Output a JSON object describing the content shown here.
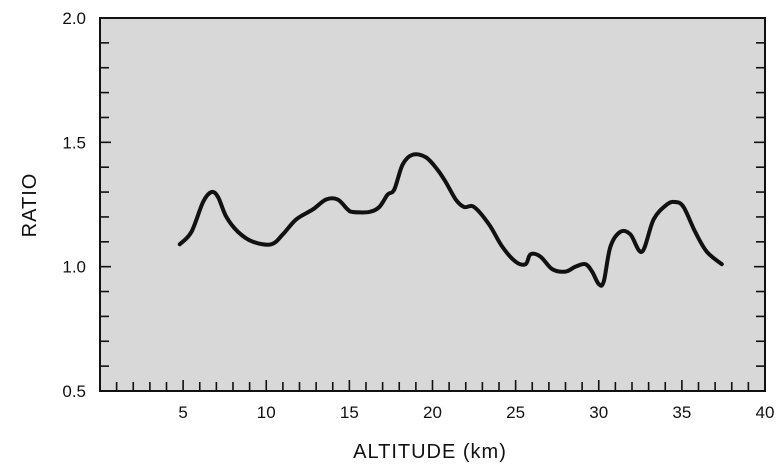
{
  "chart_data": {
    "type": "line",
    "title": "",
    "xlabel": "ALTITUDE (km)",
    "ylabel": "RATIO",
    "xlim": [
      0,
      40
    ],
    "ylim": [
      0.5,
      2.0
    ],
    "x_ticks": [
      "5",
      "10",
      "15",
      "20",
      "25",
      "30",
      "35",
      "40"
    ],
    "y_ticks": [
      "0.5",
      "1.0",
      "1.5",
      "2.0"
    ],
    "x_minor_step": 1,
    "y_minor_step": 0.1,
    "grid": false,
    "plot_background": "#d8d8d8",
    "line_color": "#111111",
    "series": [
      {
        "x": [
          4.8,
          5.5,
          6.2,
          6.7,
          7.1,
          7.6,
          8.3,
          9.2,
          10.3,
          11.0,
          11.8,
          12.8,
          13.6,
          14.3,
          14.9,
          15.2,
          16.2,
          16.8,
          17.3,
          17.7,
          18.2,
          18.8,
          19.6,
          20.3,
          20.8,
          21.4,
          21.9,
          22.5,
          23.4,
          24.2,
          25.0,
          25.6,
          25.9,
          26.5,
          27.2,
          28.0,
          28.6,
          29.2,
          29.6,
          30.0,
          30.3,
          30.7,
          31.3,
          31.9,
          32.6,
          33.3,
          34.1,
          34.6,
          35.1,
          35.8,
          36.5,
          37.4
        ],
        "y": [
          1.09,
          1.14,
          1.26,
          1.3,
          1.28,
          1.2,
          1.14,
          1.1,
          1.09,
          1.13,
          1.19,
          1.23,
          1.27,
          1.27,
          1.23,
          1.22,
          1.22,
          1.24,
          1.29,
          1.31,
          1.41,
          1.45,
          1.44,
          1.39,
          1.34,
          1.27,
          1.24,
          1.24,
          1.17,
          1.08,
          1.02,
          1.01,
          1.05,
          1.04,
          0.99,
          0.98,
          1.0,
          1.01,
          0.98,
          0.93,
          0.94,
          1.08,
          1.14,
          1.13,
          1.06,
          1.19,
          1.25,
          1.26,
          1.24,
          1.14,
          1.06,
          1.01
        ]
      }
    ]
  }
}
